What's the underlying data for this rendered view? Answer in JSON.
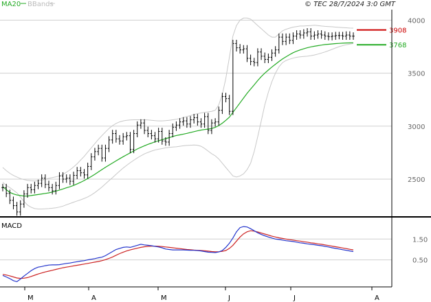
{
  "header": {
    "legend_ma": "MA20",
    "legend_bb": "BBands",
    "copyright": "© TEC 28/7/2024 3:0 GMT"
  },
  "colors": {
    "ma": "#22aa22",
    "bbands": "#c8c8c8",
    "price": "#000000",
    "macd_line": "#2233cc",
    "signal_line": "#cc2222",
    "grid": "#cfcfcf",
    "resistance": "#cc0000",
    "support": "#22aa22"
  },
  "chart_data": [
    {
      "type": "ohlc",
      "panel": "price",
      "ylim": [
        2150,
        4100
      ],
      "y_ticks": [
        2500,
        3000,
        3500,
        4000
      ],
      "x_labels": [
        "M",
        "A",
        "M",
        "J",
        "J",
        "A"
      ],
      "levels": [
        {
          "label": "3908",
          "value": 3908,
          "color": "#cc0000"
        },
        {
          "label": "3768",
          "value": 3768,
          "color": "#22aa22"
        }
      ],
      "close": [
        2420,
        2365,
        2300,
        2250,
        2190,
        2265,
        2360,
        2420,
        2400,
        2440,
        2460,
        2510,
        2450,
        2420,
        2390,
        2440,
        2530,
        2500,
        2510,
        2480,
        2535,
        2580,
        2560,
        2540,
        2620,
        2710,
        2760,
        2790,
        2700,
        2790,
        2870,
        2930,
        2880,
        2860,
        2900,
        2910,
        2780,
        2930,
        3010,
        3030,
        2960,
        2930,
        2910,
        2880,
        2950,
        2860,
        2850,
        2930,
        2990,
        3010,
        3040,
        3050,
        3020,
        3060,
        3080,
        3040,
        3020,
        3090,
        2960,
        3030,
        3040,
        3150,
        3280,
        3260,
        3140,
        3780,
        3740,
        3720,
        3730,
        3640,
        3610,
        3600,
        3700,
        3660,
        3630,
        3650,
        3690,
        3720,
        3840,
        3800,
        3840,
        3810,
        3850,
        3870,
        3860,
        3880,
        3890,
        3850,
        3860,
        3870,
        3860,
        3850,
        3845,
        3850,
        3855,
        3855,
        3850,
        3860,
        3850,
        3850
      ],
      "ma20": [
        2430,
        2400,
        2375,
        2360,
        2350,
        2345,
        2340,
        2340,
        2345,
        2350,
        2355,
        2360,
        2365,
        2370,
        2378,
        2387,
        2397,
        2407,
        2418,
        2428,
        2440,
        2455,
        2470,
        2487,
        2505,
        2525,
        2545,
        2568,
        2590,
        2612,
        2632,
        2652,
        2672,
        2692,
        2712,
        2730,
        2748,
        2766,
        2785,
        2800,
        2815,
        2828,
        2840,
        2852,
        2862,
        2872,
        2882,
        2892,
        2902,
        2912,
        2918,
        2925,
        2932,
        2940,
        2948,
        2956,
        2963,
        2968,
        2972,
        2978,
        2988,
        3005,
        3028,
        3055,
        3085,
        3130,
        3175,
        3220,
        3265,
        3310,
        3350,
        3390,
        3430,
        3468,
        3500,
        3530,
        3558,
        3584,
        3610,
        3634,
        3655,
        3675,
        3693,
        3708,
        3720,
        3730,
        3740,
        3748,
        3754,
        3760,
        3765,
        3770,
        3773,
        3776,
        3779,
        3781,
        3783,
        3785,
        3786,
        3787
      ],
      "bb_upper": [
        2610,
        2580,
        2555,
        2535,
        2520,
        2505,
        2495,
        2488,
        2484,
        2482,
        2484,
        2490,
        2498,
        2508,
        2515,
        2522,
        2530,
        2545,
        2565,
        2588,
        2615,
        2645,
        2680,
        2715,
        2755,
        2795,
        2835,
        2875,
        2910,
        2945,
        2978,
        3005,
        3025,
        3040,
        3050,
        3055,
        3058,
        3060,
        3060,
        3060,
        3060,
        3058,
        3055,
        3052,
        3050,
        3050,
        3052,
        3056,
        3060,
        3065,
        3072,
        3080,
        3090,
        3100,
        3110,
        3118,
        3125,
        3130,
        3135,
        3140,
        3150,
        3200,
        3300,
        3450,
        3650,
        3850,
        3950,
        4000,
        4020,
        4020,
        4010,
        3980,
        3950,
        3920,
        3890,
        3860,
        3840,
        3840,
        3870,
        3900,
        3915,
        3925,
        3935,
        3940,
        3945,
        3945,
        3948,
        3950,
        3952,
        3950,
        3945,
        3942,
        3940,
        3938,
        3935,
        3932,
        3930,
        3928,
        3926,
        3925
      ],
      "bb_lower": [
        2470,
        2440,
        2420,
        2395,
        2370,
        2330,
        2290,
        2255,
        2235,
        2222,
        2218,
        2218,
        2220,
        2222,
        2225,
        2230,
        2236,
        2245,
        2258,
        2270,
        2282,
        2294,
        2305,
        2318,
        2332,
        2350,
        2372,
        2398,
        2425,
        2455,
        2485,
        2515,
        2545,
        2575,
        2605,
        2630,
        2655,
        2678,
        2700,
        2720,
        2738,
        2752,
        2765,
        2775,
        2782,
        2788,
        2795,
        2800,
        2803,
        2805,
        2810,
        2815,
        2818,
        2820,
        2822,
        2820,
        2810,
        2790,
        2765,
        2740,
        2720,
        2690,
        2650,
        2610,
        2570,
        2530,
        2520,
        2530,
        2550,
        2590,
        2650,
        2760,
        2900,
        3050,
        3200,
        3320,
        3420,
        3500,
        3560,
        3600,
        3620,
        3632,
        3642,
        3650,
        3655,
        3658,
        3660,
        3665,
        3672,
        3680,
        3690,
        3700,
        3712,
        3725,
        3738,
        3750,
        3760,
        3768,
        3775,
        3780
      ]
    },
    {
      "type": "line",
      "panel": "macd",
      "title": "MACD",
      "ylim": [
        -0.8,
        2.5
      ],
      "y_ticks": [
        0.5,
        1.5
      ],
      "y_tick_labels": [
        "0.50",
        "1.50"
      ],
      "series": [
        {
          "values": [
            -0.25,
            -0.32,
            -0.4,
            -0.5,
            -0.55,
            -0.42,
            -0.28,
            -0.15,
            -0.02,
            0.08,
            0.15,
            0.18,
            0.22,
            0.25,
            0.26,
            0.26,
            0.27,
            0.3,
            0.33,
            0.35,
            0.38,
            0.41,
            0.44,
            0.46,
            0.5,
            0.53,
            0.56,
            0.6,
            0.63,
            0.7,
            0.8,
            0.9,
            1.0,
            1.05,
            1.1,
            1.12,
            1.1,
            1.15,
            1.2,
            1.25,
            1.22,
            1.2,
            1.18,
            1.15,
            1.12,
            1.08,
            1.02,
            1.0,
            0.98,
            0.98,
            0.98,
            0.98,
            0.97,
            0.96,
            0.96,
            0.95,
            0.93,
            0.9,
            0.87,
            0.86,
            0.85,
            0.88,
            0.95,
            1.1,
            1.3,
            1.55,
            1.85,
            2.05,
            2.1,
            2.08,
            2.0,
            1.9,
            1.8,
            1.72,
            1.66,
            1.6,
            1.55,
            1.5,
            1.48,
            1.45,
            1.42,
            1.4,
            1.38,
            1.35,
            1.32,
            1.3,
            1.27,
            1.25,
            1.23,
            1.2,
            1.18,
            1.15,
            1.12,
            1.08,
            1.05,
            1.02,
            0.99,
            0.96,
            0.93,
            0.9
          ]
        },
        {
          "values": [
            -0.2,
            -0.23,
            -0.27,
            -0.32,
            -0.37,
            -0.39,
            -0.38,
            -0.35,
            -0.3,
            -0.24,
            -0.18,
            -0.13,
            -0.08,
            -0.04,
            0.0,
            0.04,
            0.08,
            0.12,
            0.15,
            0.18,
            0.21,
            0.24,
            0.27,
            0.3,
            0.33,
            0.36,
            0.39,
            0.42,
            0.46,
            0.51,
            0.57,
            0.64,
            0.72,
            0.8,
            0.87,
            0.93,
            0.98,
            1.02,
            1.06,
            1.1,
            1.13,
            1.15,
            1.16,
            1.16,
            1.15,
            1.14,
            1.12,
            1.1,
            1.08,
            1.06,
            1.04,
            1.02,
            1.0,
            0.99,
            0.97,
            0.96,
            0.95,
            0.94,
            0.92,
            0.9,
            0.89,
            0.89,
            0.91,
            0.95,
            1.05,
            1.2,
            1.4,
            1.6,
            1.75,
            1.85,
            1.9,
            1.88,
            1.84,
            1.79,
            1.74,
            1.69,
            1.64,
            1.6,
            1.56,
            1.53,
            1.5,
            1.47,
            1.45,
            1.42,
            1.4,
            1.37,
            1.35,
            1.32,
            1.3,
            1.27,
            1.25,
            1.22,
            1.19,
            1.16,
            1.13,
            1.1,
            1.07,
            1.04,
            1.01,
            0.98
          ]
        }
      ]
    }
  ]
}
